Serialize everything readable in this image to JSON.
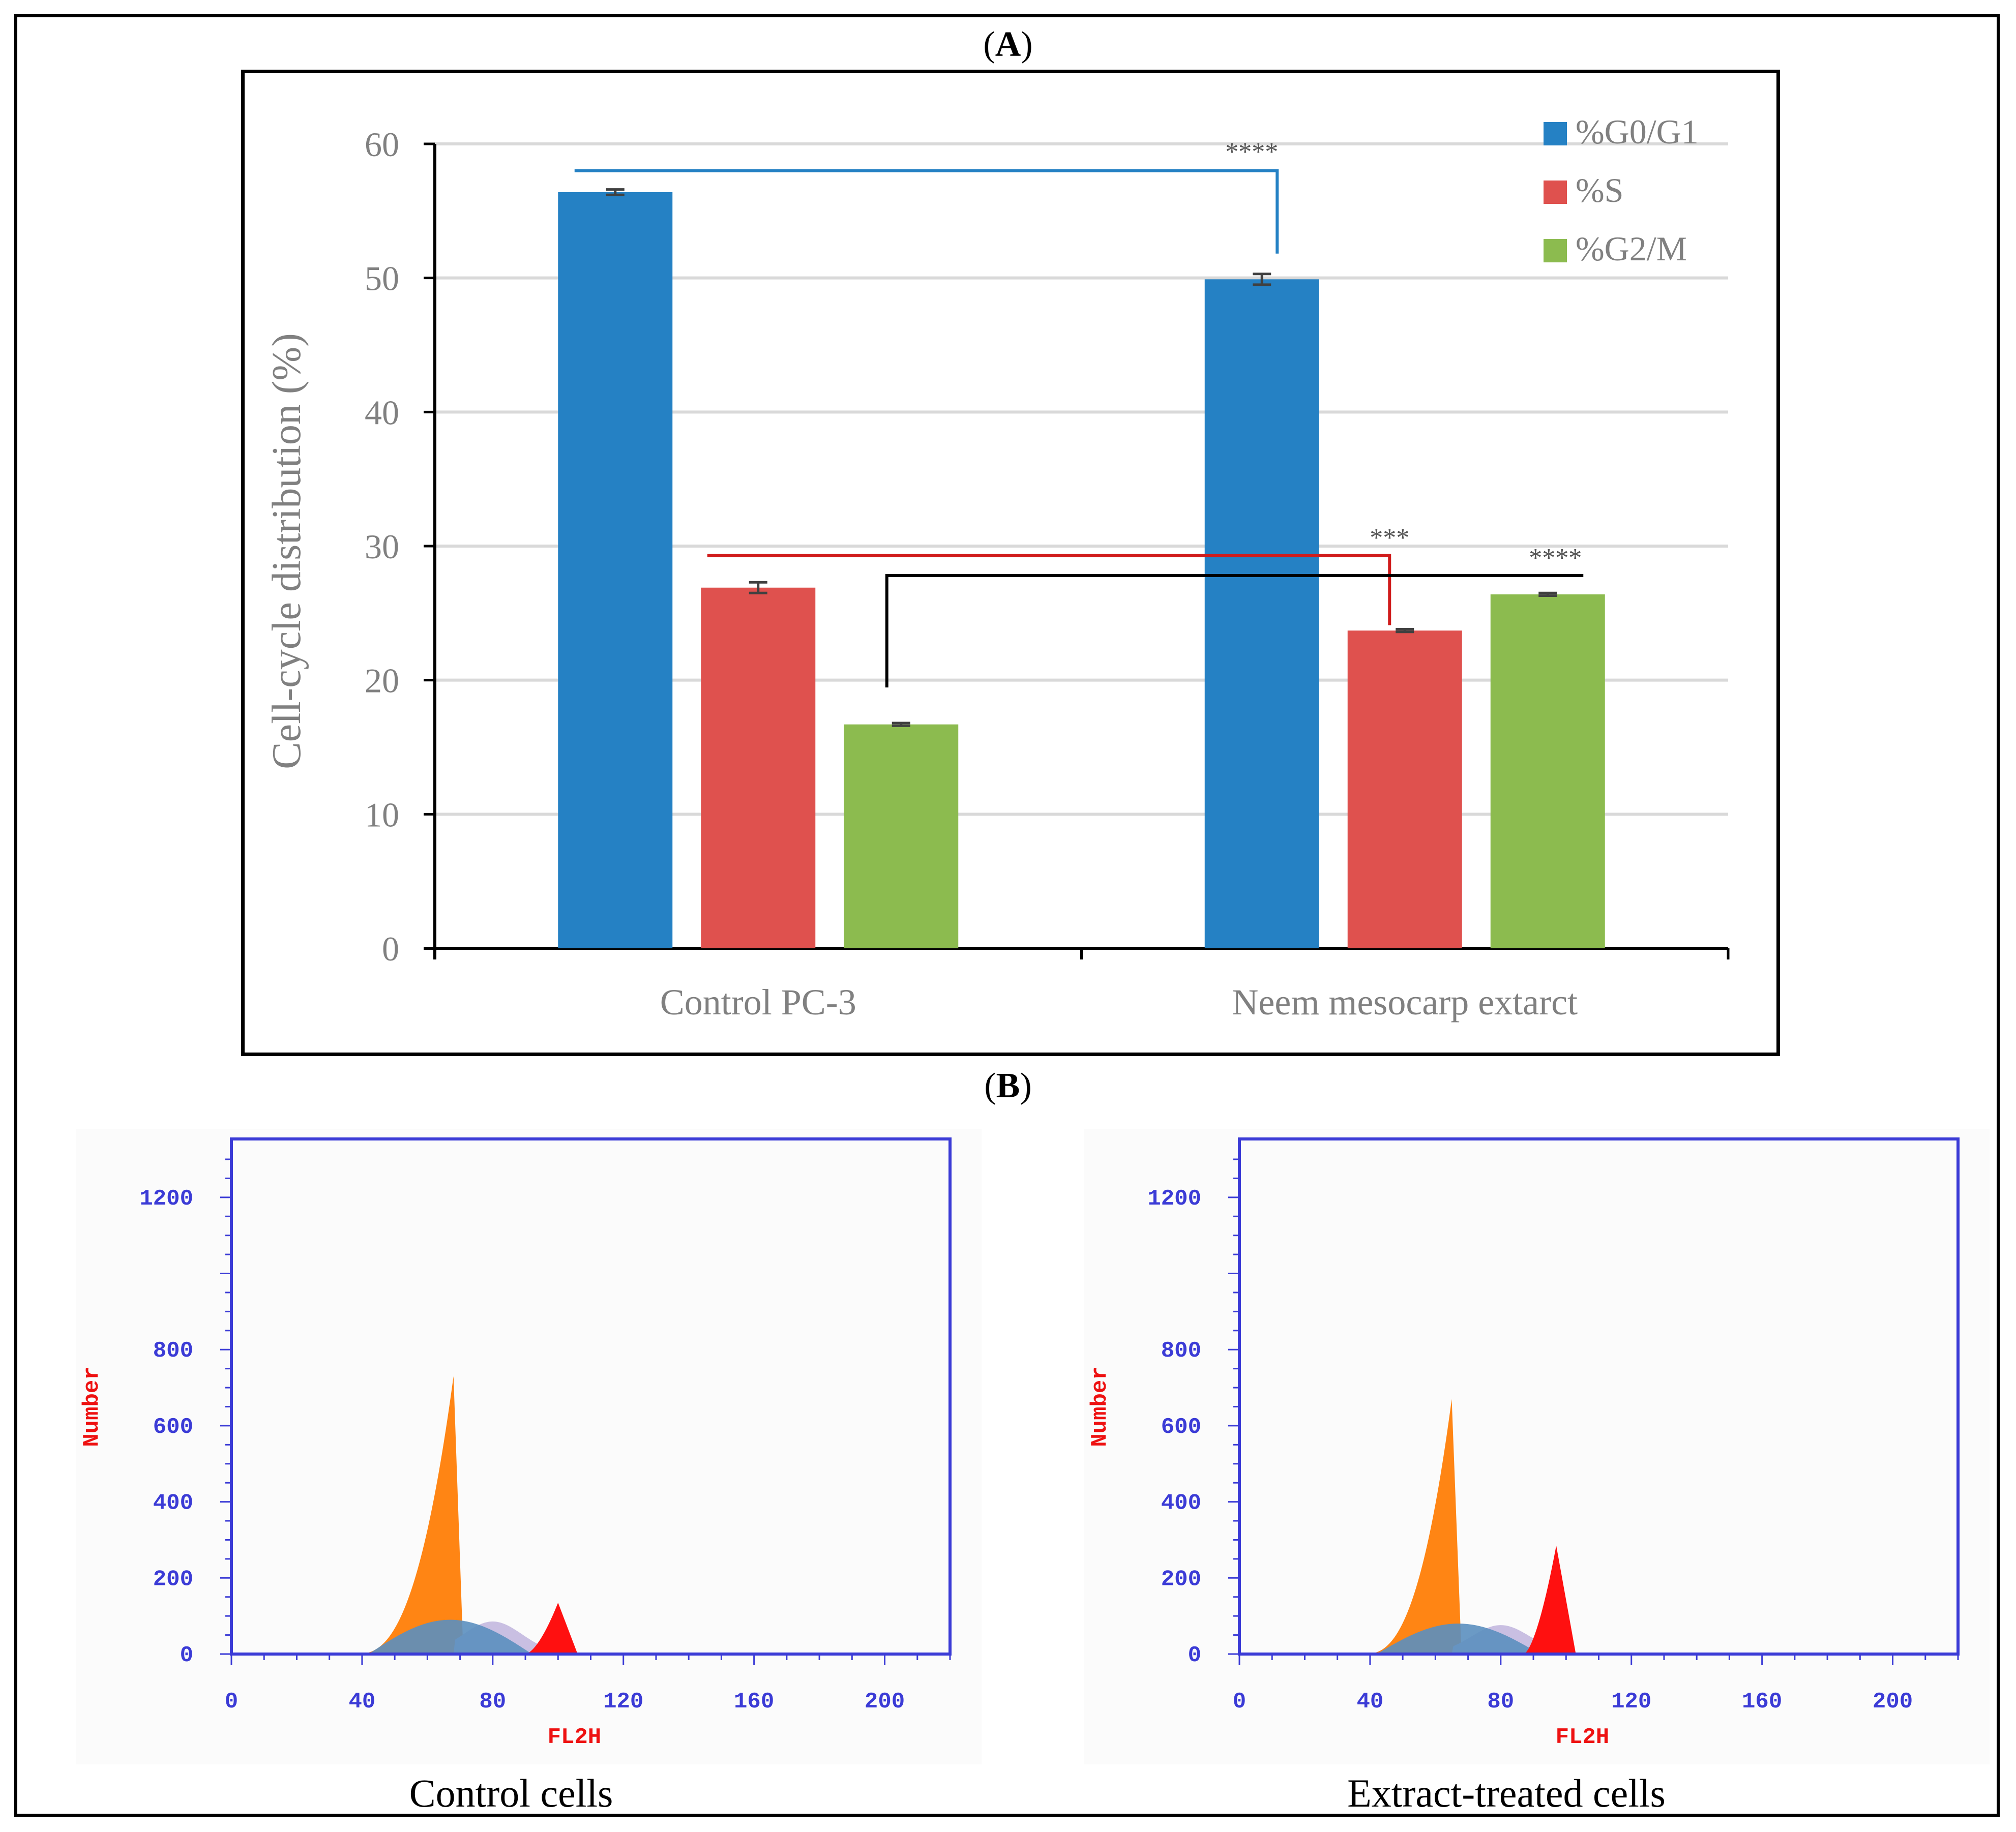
{
  "panels": {
    "a_label": "A",
    "b_label": "B"
  },
  "colors": {
    "g0g1": "#2581c4",
    "s": "#df514e",
    "g2m": "#8cbb4f",
    "axis_gray": "#808080",
    "hist_axis": "#3b3bd6",
    "hist_label": "#ee1111",
    "orange": "#ff8514",
    "steel": "#5b8fbf",
    "lavender": "#c9bfe2",
    "red_peak": "#ff1010"
  },
  "chart_data": [
    {
      "type": "bar",
      "title": "",
      "xlabel": "",
      "ylabel": "Cell-cycle distribution (%)",
      "ylim": [
        0,
        60
      ],
      "yticks": [
        "0",
        "10",
        "20",
        "30",
        "40",
        "50",
        "60"
      ],
      "categories": [
        "Control PC-3",
        "Neem mesocarp extarct"
      ],
      "series": [
        {
          "name": "%G0/G1",
          "values": [
            56.4,
            49.9
          ],
          "errors": [
            0.2,
            0.4
          ]
        },
        {
          "name": "%S",
          "values": [
            26.9,
            23.7
          ],
          "errors": [
            0.4,
            0.1
          ]
        },
        {
          "name": "%G2/M",
          "values": [
            16.7,
            26.4
          ],
          "errors": [
            0.1,
            0.1
          ]
        }
      ],
      "grid": true,
      "legend": "top-right",
      "annotations": [
        {
          "text": "****",
          "series": "%G0/G1",
          "color": "#2581c4"
        },
        {
          "text": "***",
          "series": "%S",
          "color": "#d01c1c"
        },
        {
          "text": "****",
          "series": "%G2/M",
          "color": "#000000"
        }
      ]
    },
    {
      "type": "area",
      "title": "Control cells",
      "xlabel": "FL2H",
      "ylabel": "Number",
      "xticks": [
        "0",
        "40",
        "80",
        "120",
        "160",
        "200"
      ],
      "yticks": [
        "0",
        "200",
        "400",
        "600",
        "800",
        "1200"
      ],
      "xlim": [
        0,
        220
      ],
      "ylim": [
        0,
        1300
      ],
      "peaks": [
        {
          "phase": "G0/G1",
          "x": 68,
          "y": 730
        },
        {
          "phase": "S",
          "x": 75,
          "y": 90
        },
        {
          "phase": "G2/M",
          "x": 100,
          "y": 135
        }
      ]
    },
    {
      "type": "area",
      "title": "Extract-treated cells",
      "xlabel": "FL2H",
      "ylabel": "Number",
      "xticks": [
        "0",
        "40",
        "80",
        "120",
        "160",
        "200"
      ],
      "yticks": [
        "0",
        "200",
        "400",
        "600",
        "800",
        "1200"
      ],
      "xlim": [
        0,
        220
      ],
      "ylim": [
        0,
        1300
      ],
      "peaks": [
        {
          "phase": "G0/G1",
          "x": 65,
          "y": 670
        },
        {
          "phase": "S",
          "x": 75,
          "y": 80
        },
        {
          "phase": "G2/M",
          "x": 97,
          "y": 285
        }
      ]
    }
  ]
}
